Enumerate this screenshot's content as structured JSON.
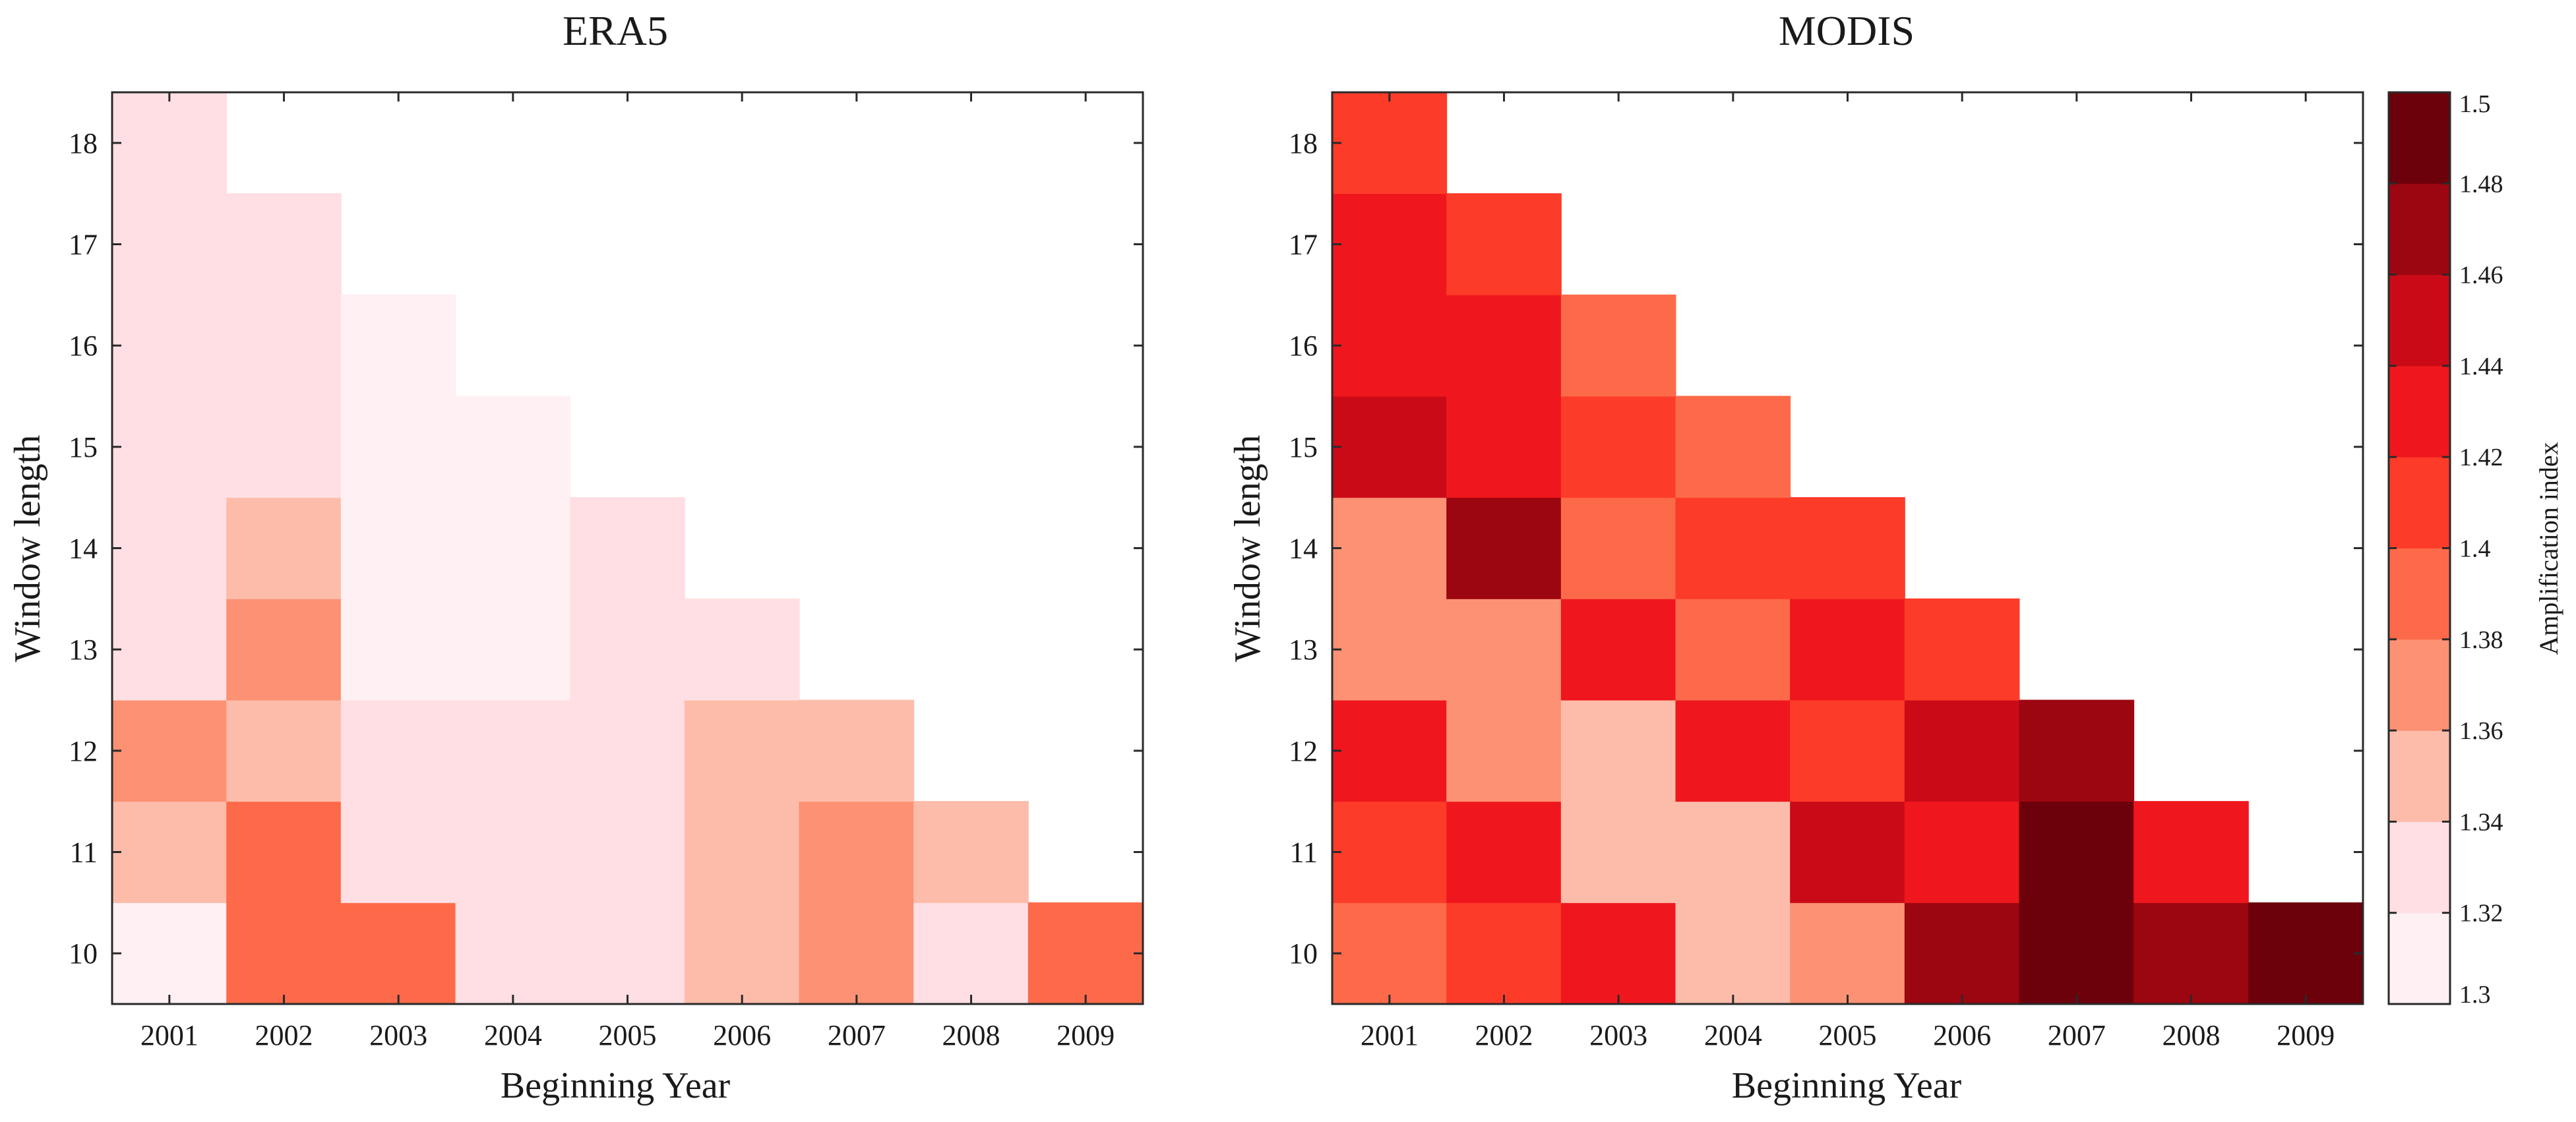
{
  "chart_data": [
    {
      "type": "heatmap",
      "title": "ERA5",
      "xlabel": "Beginning Year",
      "ylabel": "Window length",
      "x_categories": [
        "2001",
        "2002",
        "2003",
        "2004",
        "2005",
        "2006",
        "2007",
        "2008",
        "2009"
      ],
      "y_categories": [
        "10",
        "11",
        "12",
        "13",
        "14",
        "15",
        "16",
        "17",
        "18"
      ],
      "values": [
        [
          1.31,
          1.35,
          1.37,
          1.33,
          1.33,
          1.33,
          1.33,
          1.32,
          1.32
        ],
        [
          1.39,
          1.39,
          1.35,
          1.37,
          1.35,
          1.33,
          1.33,
          1.32,
          null
        ],
        [
          1.39,
          1.33,
          1.33,
          1.31,
          1.31,
          1.31,
          1.31,
          null,
          null
        ],
        [
          1.33,
          1.33,
          1.33,
          1.31,
          1.31,
          1.31,
          null,
          null,
          null
        ],
        [
          1.33,
          1.33,
          1.33,
          1.33,
          1.33,
          null,
          null,
          null,
          null
        ],
        [
          1.35,
          1.35,
          1.35,
          1.33,
          null,
          null,
          null,
          null,
          null
        ],
        [
          1.37,
          1.37,
          1.35,
          null,
          null,
          null,
          null,
          null,
          null
        ],
        [
          1.33,
          1.35,
          null,
          null,
          null,
          null,
          null,
          null,
          null
        ],
        [
          1.39,
          null,
          null,
          null,
          null,
          null,
          null,
          null,
          null
        ]
      ],
      "value_layout": "values[i] is the diagonal for beginning year x_categories[i]; values[i][j] is window length y_categories[j]"
    },
    {
      "type": "heatmap",
      "title": "MODIS",
      "xlabel": "Beginning Year",
      "ylabel": "Window length",
      "x_categories": [
        "2001",
        "2002",
        "2003",
        "2004",
        "2005",
        "2006",
        "2007",
        "2008",
        "2009"
      ],
      "y_categories": [
        "10",
        "11",
        "12",
        "13",
        "14",
        "15",
        "16",
        "17",
        "18"
      ],
      "values": [
        [
          1.39,
          1.41,
          1.43,
          1.37,
          1.37,
          1.45,
          1.43,
          1.43,
          1.41
        ],
        [
          1.41,
          1.43,
          1.37,
          1.37,
          1.47,
          1.43,
          1.43,
          1.41,
          null
        ],
        [
          1.43,
          1.35,
          1.35,
          1.43,
          1.39,
          1.41,
          1.39,
          null,
          null
        ],
        [
          1.35,
          1.35,
          1.43,
          1.39,
          1.41,
          1.39,
          null,
          null,
          null
        ],
        [
          1.37,
          1.45,
          1.41,
          1.43,
          1.41,
          null,
          null,
          null,
          null
        ],
        [
          1.47,
          1.43,
          1.45,
          1.41,
          null,
          null,
          null,
          null,
          null
        ],
        [
          1.49,
          1.49,
          1.47,
          null,
          null,
          null,
          null,
          null,
          null
        ],
        [
          1.47,
          1.43,
          null,
          null,
          null,
          null,
          null,
          null,
          null
        ],
        [
          1.49,
          null,
          null,
          null,
          null,
          null,
          null,
          null,
          null
        ]
      ],
      "value_layout": "values[i] is the diagonal for beginning year x_categories[i]; values[i][j] is window length y_categories[j]"
    }
  ],
  "colorbar": {
    "label": "Amplification index",
    "min": 1.3,
    "max": 1.5,
    "step": 0.02,
    "ticks": [
      "1.3",
      "1.32",
      "1.34",
      "1.36",
      "1.38",
      "1.4",
      "1.42",
      "1.44",
      "1.46",
      "1.48",
      "1.5"
    ],
    "colors": [
      "#fff0f3",
      "#ffdfe3",
      "#fdbcaa",
      "#fc9174",
      "#fd6a4a",
      "#fd3b29",
      "#ef171d",
      "#cb0a18",
      "#9c0610",
      "#6c000b"
    ]
  },
  "colors": {
    "frame": "#2a2a2a",
    "text": "#1a1a1a",
    "background": "#ffffff"
  }
}
